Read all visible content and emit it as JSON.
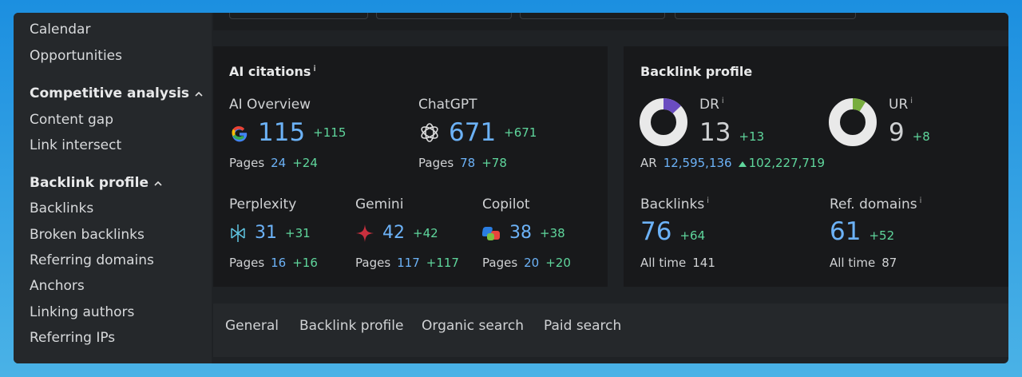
{
  "sidebar": {
    "items": [
      "Calendar",
      "Opportunities"
    ],
    "sections": [
      {
        "title": "Competitive analysis",
        "items": [
          "Content gap",
          "Link intersect"
        ]
      },
      {
        "title": "Backlink profile",
        "items": [
          "Backlinks",
          "Broken backlinks",
          "Referring domains",
          "Anchors",
          "Linking authors",
          "Referring IPs"
        ]
      }
    ]
  },
  "info_mark": "i",
  "pages_label": "Pages",
  "all_time_label": "All time",
  "ai_citations": {
    "title": "AI citations",
    "sources": [
      {
        "name": "AI Overview",
        "value": "115",
        "delta": "+115",
        "pages": "24",
        "pages_delta": "+24"
      },
      {
        "name": "ChatGPT",
        "value": "671",
        "delta": "+671",
        "pages": "78",
        "pages_delta": "+78"
      },
      {
        "name": "Perplexity",
        "value": "31",
        "delta": "+31",
        "pages": "16",
        "pages_delta": "+16"
      },
      {
        "name": "Gemini",
        "value": "42",
        "delta": "+42",
        "pages": "117",
        "pages_delta": "+117"
      },
      {
        "name": "Copilot",
        "value": "38",
        "delta": "+38",
        "pages": "20",
        "pages_delta": "+20"
      }
    ]
  },
  "backlink": {
    "title": "Backlink profile",
    "dr": {
      "label": "DR",
      "value": 13,
      "delta": "+13"
    },
    "ur": {
      "label": "UR",
      "value": 9,
      "delta": "+8"
    },
    "ar": {
      "label": "AR",
      "value": "12,595,136",
      "delta": "102,227,719"
    },
    "backlinks": {
      "label": "Backlinks",
      "value": "76",
      "delta": "+64",
      "all_time": "141"
    },
    "ref_domains": {
      "label": "Ref. domains",
      "value": "61",
      "delta": "+52",
      "all_time": "87"
    }
  },
  "tabs": [
    "General",
    "Backlink profile",
    "Organic search",
    "Paid search"
  ]
}
